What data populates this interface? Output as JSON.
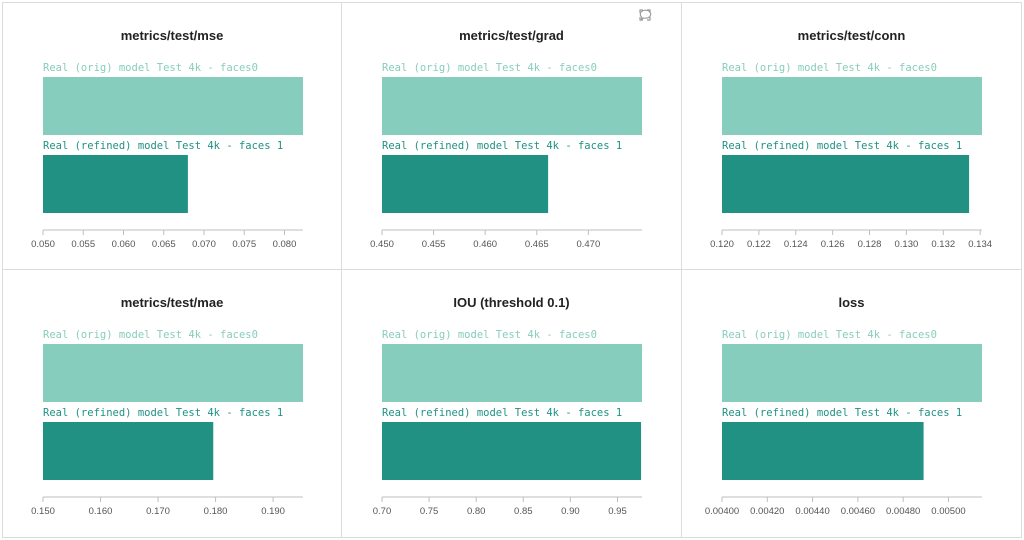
{
  "colors": {
    "orig": "#87cdbd",
    "refined": "#209183",
    "axis": "#bfbfbf",
    "tick_text": "#555555"
  },
  "toolbar": {
    "icons": [
      "fullscreen-icon",
      "comment-icon"
    ]
  },
  "chart_data": [
    {
      "type": "bar",
      "orientation": "horizontal",
      "title": "metrics/test/mse",
      "categories": [
        "Real (orig) model Test 4k - faces0",
        "Real (refined) model Test 4k - faces 1"
      ],
      "values": [
        0.0823,
        0.068
      ],
      "xlim": [
        0.05,
        0.0823
      ],
      "xticks": [
        0.05,
        0.055,
        0.06,
        0.065,
        0.07,
        0.075,
        0.08
      ],
      "xtick_labels": [
        "0.050",
        "0.055",
        "0.060",
        "0.065",
        "0.070",
        "0.075",
        "0.080"
      ],
      "grid": false
    },
    {
      "type": "bar",
      "orientation": "horizontal",
      "title": "metrics/test/grad",
      "categories": [
        "Real (orig) model Test 4k - faces0",
        "Real (refined) model Test 4k - faces 1"
      ],
      "values": [
        0.4752,
        0.4661
      ],
      "xlim": [
        0.45,
        0.4752
      ],
      "xticks": [
        0.45,
        0.455,
        0.46,
        0.465,
        0.47
      ],
      "xtick_labels": [
        "0.450",
        "0.455",
        "0.460",
        "0.465",
        "0.470"
      ],
      "grid": false
    },
    {
      "type": "bar",
      "orientation": "horizontal",
      "title": "metrics/test/conn",
      "categories": [
        "Real (orig) model Test 4k - faces0",
        "Real (refined) model Test 4k - faces 1"
      ],
      "values": [
        0.1341,
        0.1334
      ],
      "xlim": [
        0.12,
        0.1341
      ],
      "xticks": [
        0.12,
        0.122,
        0.124,
        0.126,
        0.128,
        0.13,
        0.132,
        0.134
      ],
      "xtick_labels": [
        "0.120",
        "0.122",
        "0.124",
        "0.126",
        "0.128",
        "0.130",
        "0.132",
        "0.134"
      ],
      "grid": false
    },
    {
      "type": "bar",
      "orientation": "horizontal",
      "title": "metrics/test/mae",
      "categories": [
        "Real (orig) model Test 4k - faces0",
        "Real (refined) model Test 4k - faces 1"
      ],
      "values": [
        0.1952,
        0.1796
      ],
      "xlim": [
        0.15,
        0.1952
      ],
      "xticks": [
        0.15,
        0.16,
        0.17,
        0.18,
        0.19
      ],
      "xtick_labels": [
        "0.150",
        "0.160",
        "0.170",
        "0.180",
        "0.190"
      ],
      "grid": false
    },
    {
      "type": "bar",
      "orientation": "horizontal",
      "title": "IOU (threshold 0.1)",
      "categories": [
        "Real (orig) model Test 4k - faces0",
        "Real (refined) model Test 4k - faces 1"
      ],
      "values": [
        0.976,
        0.975
      ],
      "xlim": [
        0.7,
        0.976
      ],
      "xticks": [
        0.7,
        0.75,
        0.8,
        0.85,
        0.9,
        0.95
      ],
      "xtick_labels": [
        "0.70",
        "0.75",
        "0.80",
        "0.85",
        "0.90",
        "0.95"
      ],
      "grid": false
    },
    {
      "type": "bar",
      "orientation": "horizontal",
      "title": "loss",
      "categories": [
        "Real (orig) model Test 4k - faces0",
        "Real (refined) model Test 4k - faces 1"
      ],
      "values": [
        0.005148,
        0.00489
      ],
      "xlim": [
        0.004,
        0.005148
      ],
      "xticks": [
        0.004,
        0.0042,
        0.0044,
        0.0046,
        0.0048,
        0.005
      ],
      "xtick_labels": [
        "0.00400",
        "0.00420",
        "0.00440",
        "0.00460",
        "0.00480",
        "0.00500"
      ],
      "grid": false
    }
  ]
}
